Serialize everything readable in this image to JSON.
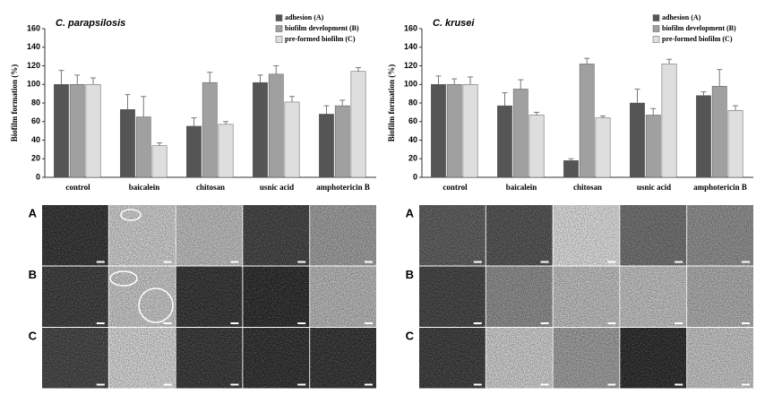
{
  "chart_data": [
    {
      "type": "bar",
      "title": "C. parapsilosis",
      "y_label": "Biofilm formation (%)",
      "categories": [
        "control",
        "baicalein",
        "chitosan",
        "usnic acid",
        "amphotericin B"
      ],
      "series": [
        {
          "name": "adhesion (A)",
          "color": "#555555",
          "values": [
            100,
            73,
            55,
            102,
            68
          ],
          "errors": [
            15,
            16,
            9,
            8,
            9
          ]
        },
        {
          "name": "biofilm development (B)",
          "color": "#a0a0a0",
          "values": [
            100,
            65,
            102,
            111,
            77
          ],
          "errors": [
            10,
            22,
            11,
            9,
            6
          ]
        },
        {
          "name": "pre-formed biofilm (C)",
          "color": "#dedede",
          "values": [
            100,
            34,
            57,
            81,
            114
          ],
          "errors": [
            7,
            3,
            3,
            6,
            4
          ]
        }
      ],
      "ylim": [
        0,
        160
      ],
      "yticks": [
        0,
        20,
        40,
        60,
        80,
        100,
        120,
        140,
        160
      ],
      "legend": "upper right"
    },
    {
      "type": "bar",
      "title": "C. krusei",
      "y_label": "Biofilm formation (%)",
      "categories": [
        "control",
        "baicalein",
        "chitosan",
        "usnic acid",
        "amphotericin B"
      ],
      "series": [
        {
          "name": "adhesion (A)",
          "color": "#555555",
          "values": [
            100,
            77,
            18,
            80,
            88
          ],
          "errors": [
            9,
            14,
            2,
            15,
            4
          ]
        },
        {
          "name": "biofilm development (B)",
          "color": "#a0a0a0",
          "values": [
            100,
            95,
            122,
            67,
            98
          ],
          "errors": [
            6,
            10,
            6,
            7,
            18
          ]
        },
        {
          "name": "pre-formed biofilm (C)",
          "color": "#dedede",
          "values": [
            100,
            67,
            64,
            122,
            72
          ],
          "errors": [
            8,
            3,
            2,
            5,
            5
          ]
        }
      ],
      "ylim": [
        0,
        160
      ],
      "yticks": [
        0,
        20,
        40,
        60,
        80,
        100,
        120,
        140,
        160
      ],
      "legend": "upper right"
    }
  ],
  "panels": [
    {
      "row_labels": [
        "A",
        "B",
        "C"
      ]
    },
    {
      "row_labels": [
        "A",
        "B",
        "C"
      ]
    }
  ]
}
